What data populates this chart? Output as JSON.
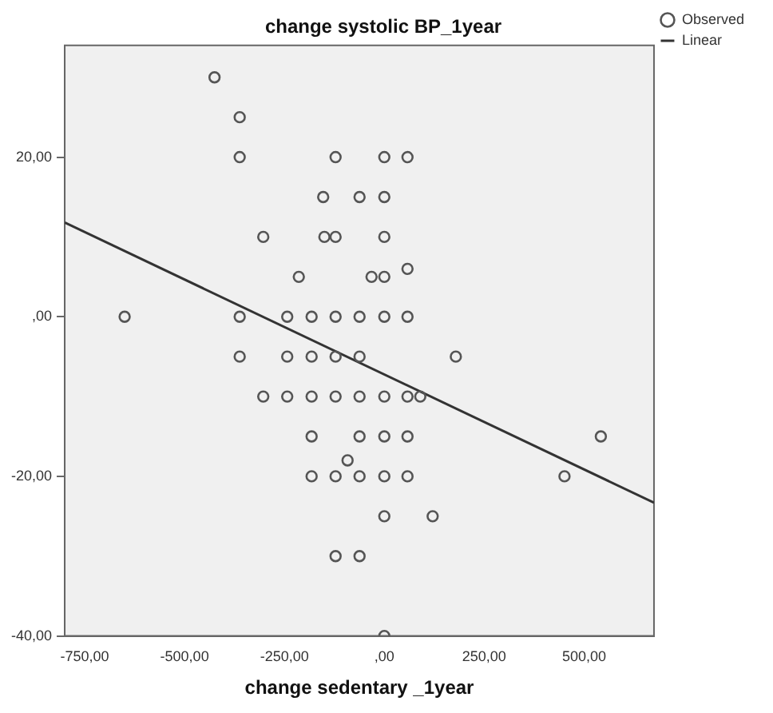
{
  "chart_data": {
    "type": "scatter",
    "title": "change systolic BP_1year",
    "xlabel": "change sedentary _1year",
    "xlim": [
      -800,
      675
    ],
    "ylim": [
      -40,
      34
    ],
    "xticks": [
      {
        "value": -750,
        "label": "-750,00"
      },
      {
        "value": -500,
        "label": "-500,00"
      },
      {
        "value": -250,
        "label": "-250,00"
      },
      {
        "value": 0,
        "label": ",00"
      },
      {
        "value": 250,
        "label": "250,00"
      },
      {
        "value": 500,
        "label": "500,00"
      }
    ],
    "yticks": [
      {
        "value": -40,
        "label": "-40,00"
      },
      {
        "value": -20,
        "label": "-20,00"
      },
      {
        "value": 0,
        "label": ",00"
      },
      {
        "value": 20,
        "label": "20,00"
      }
    ],
    "grid": false,
    "legend": "top right",
    "marker": "circle",
    "series": [
      {
        "name": "Observed",
        "color": "#555555",
        "x": [
          -425,
          -362,
          -362,
          -122,
          0,
          58,
          -153,
          -62,
          0,
          -303,
          -150,
          -122,
          0,
          -214,
          -32,
          0,
          58,
          -650,
          -362,
          -243,
          -182,
          -122,
          -62,
          0,
          58,
          -362,
          -243,
          -182,
          -122,
          -62,
          179,
          -303,
          -243,
          -182,
          -122,
          -62,
          0,
          58,
          90,
          -182,
          -62,
          0,
          58,
          542,
          -92,
          -182,
          -122,
          -62,
          0,
          58,
          451,
          0,
          121,
          -122,
          -62,
          0
        ],
        "values": [
          30,
          25,
          20,
          20,
          20,
          20,
          15,
          15,
          15,
          10,
          10,
          10,
          10,
          5,
          5,
          5,
          6,
          0,
          0,
          0,
          0,
          0,
          0,
          0,
          0,
          -5,
          -5,
          -5,
          -5,
          -5,
          -5,
          -10,
          -10,
          -10,
          -10,
          -10,
          -10,
          -10,
          -10,
          -15,
          -15,
          -15,
          -15,
          -15,
          -18,
          -20,
          -20,
          -20,
          -20,
          -20,
          -20,
          -25,
          -25,
          -30,
          -30,
          -40
        ]
      },
      {
        "name": "Linear",
        "type": "line",
        "color": "#333333",
        "marker": "none",
        "line_style": "solid",
        "x": [
          -800,
          675
        ],
        "values": [
          11.8,
          -23.3
        ]
      }
    ]
  }
}
